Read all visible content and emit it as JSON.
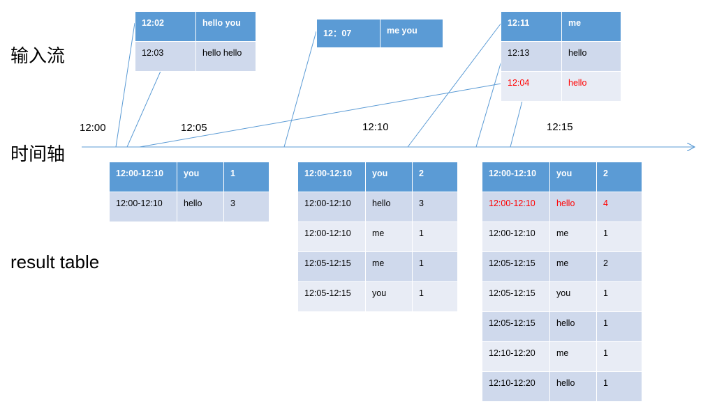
{
  "labels": {
    "input_stream": "输入流",
    "timeline": "时间轴",
    "result_table": "result table"
  },
  "ticks": [
    "12:00",
    "12:05",
    "12:10",
    "12:15"
  ],
  "input_batches": [
    {
      "rows": [
        [
          "12:02",
          "hello you"
        ],
        [
          "12:03",
          "hello hello"
        ]
      ]
    },
    {
      "rows": [
        [
          "12：07",
          "me you"
        ]
      ]
    },
    {
      "rows": [
        [
          "12:11",
          "me"
        ],
        [
          "12:13",
          "hello"
        ],
        [
          "12:04",
          "hello"
        ]
      ],
      "late_row": 2
    }
  ],
  "result_tables": [
    {
      "rows": [
        [
          "12:00-12:10",
          "you",
          "1"
        ],
        [
          "12:00-12:10",
          "hello",
          "3"
        ]
      ]
    },
    {
      "rows": [
        [
          "12:00-12:10",
          "you",
          "2"
        ],
        [
          "12:00-12:10",
          "hello",
          "3"
        ],
        [
          "12:00-12:10",
          "me",
          "1"
        ],
        [
          "12:05-12:15",
          "me",
          "1"
        ],
        [
          "12:05-12:15",
          "you",
          "1"
        ]
      ]
    },
    {
      "rows": [
        [
          "12:00-12:10",
          "you",
          "2"
        ],
        [
          "12:00-12:10",
          "hello",
          "4"
        ],
        [
          "12:00-12:10",
          "me",
          "1"
        ],
        [
          "12:05-12:15",
          "me",
          "2"
        ],
        [
          "12:05-12:15",
          "you",
          "1"
        ],
        [
          "12:05-12:15",
          "hello",
          "1"
        ],
        [
          "12:10-12:20",
          "me",
          "1"
        ],
        [
          "12:10-12:20",
          "hello",
          "1"
        ]
      ],
      "highlight_row": 1
    }
  ],
  "colors": {
    "line": "#5b9bd5",
    "header": "#5b9bd5",
    "row_odd": "#cfd9ec",
    "row_even": "#e8ecf5",
    "late": "#ff0000"
  }
}
